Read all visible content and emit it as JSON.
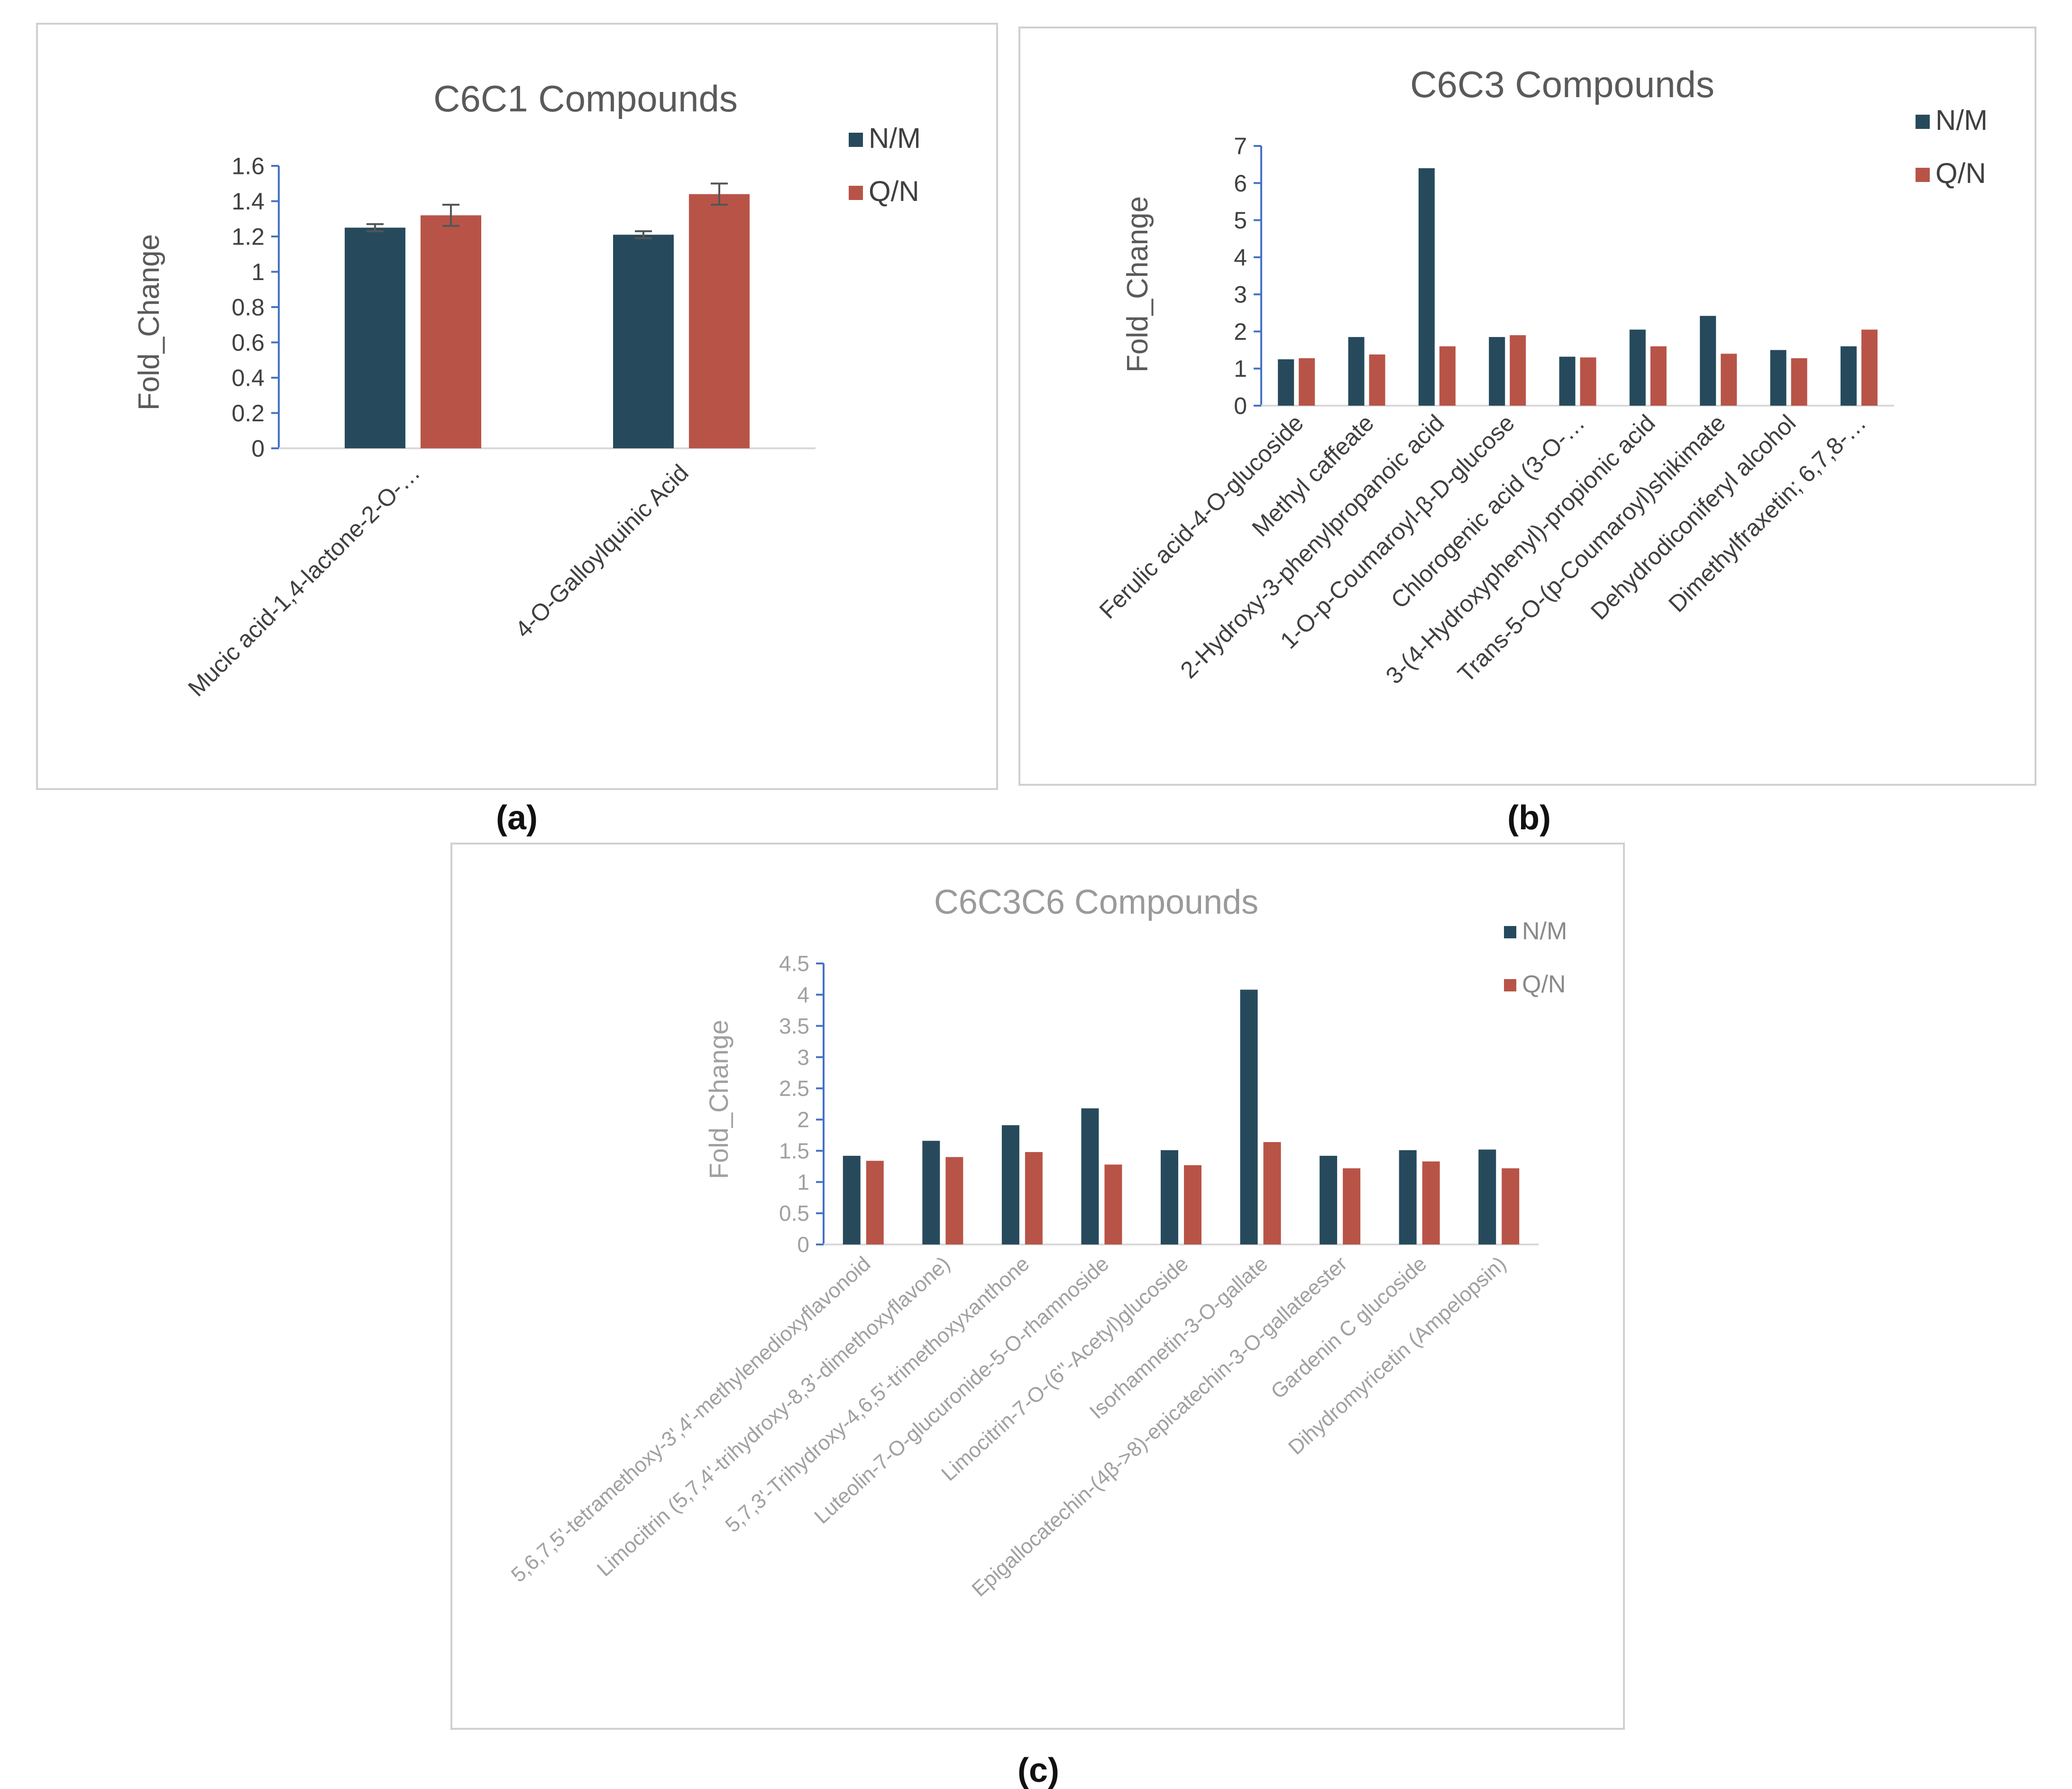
{
  "colors": {
    "nm": "#264a5c",
    "qn": "#b85447",
    "axis": "#4472c4",
    "frame": "#d0d0d0"
  },
  "chart_data": [
    {
      "type": "bar",
      "title": "C6C1 Compounds",
      "ylabel": "Fold_Change",
      "ylim": [
        0,
        1.6
      ],
      "yticks": [
        "0",
        "0.2",
        "0.4",
        "0.6",
        "0.8",
        "1",
        "1.2",
        "1.4",
        "1.6"
      ],
      "categories": [
        "Mucic acid-1,4-lactone-2-O-…",
        "4-O-Galloylquinic Acid"
      ],
      "series": [
        {
          "name": "N/M",
          "values": [
            1.25,
            1.21
          ],
          "error": [
            0.02,
            0.02
          ]
        },
        {
          "name": "Q/N",
          "values": [
            1.32,
            1.44
          ],
          "error": [
            0.06,
            0.06
          ]
        }
      ],
      "legend": "right",
      "caption": "(a)"
    },
    {
      "type": "bar",
      "title": "C6C3 Compounds",
      "ylabel": "Fold_Change",
      "ylim": [
        0,
        7
      ],
      "yticks": [
        "0",
        "1",
        "2",
        "3",
        "4",
        "5",
        "6",
        "7"
      ],
      "categories": [
        "Ferulic acid-4-O-glucoside",
        "Methyl caffeate",
        "2-Hydroxy-3-phenylpropanoic acid",
        "1-O-p-Coumaroyl-β-D-glucose",
        "Chlorogenic acid (3-O-…",
        "3-(4-Hydroxyphenyl)-propionic acid",
        "Trans-5-O-(p-Coumaroyl)shikimate",
        "Dehydrodiconiferyl alcohol",
        "Dimethylfraxetin; 6,7,8-…"
      ],
      "series": [
        {
          "name": "N/M",
          "values": [
            1.25,
            1.85,
            6.4,
            1.85,
            1.32,
            2.05,
            2.42,
            1.5,
            1.6
          ]
        },
        {
          "name": "Q/N",
          "values": [
            1.28,
            1.38,
            1.6,
            1.9,
            1.3,
            1.6,
            1.4,
            1.28,
            2.05
          ]
        }
      ],
      "legend": "top-right",
      "caption": "(b)"
    },
    {
      "type": "bar",
      "title": "C6C3C6 Compounds",
      "ylabel": "Fold_Change",
      "ylim": [
        0,
        4.5
      ],
      "yticks": [
        "0",
        "0.5",
        "1",
        "1.5",
        "2",
        "2.5",
        "3",
        "3.5",
        "4",
        "4.5"
      ],
      "categories": [
        "5,6,7,5'-tetramethoxy-3',4'-methylenedioxyflavonoid",
        "Limocitrin (5,7,4'-trihydroxy-8,3'-dimethoxyflavone)",
        "5,7,3'-Trihydroxy-4,6,5'-trimethoxyxanthone",
        "Luteolin-7-O-glucuronide-5-O-rhamnoside",
        "Limocitrin-7-O-(6''-Acetyl)glucoside",
        "Isorhamnetin-3-O-gallate",
        "Epigallocatechin-(4β->8)-epicatechin-3-O-gallateester",
        "Gardenin C glucoside",
        "Dihydromyricetin (Ampelopsin)"
      ],
      "series": [
        {
          "name": "N/M",
          "values": [
            1.42,
            1.66,
            1.91,
            2.18,
            1.51,
            4.08,
            1.42,
            1.51,
            1.52
          ]
        },
        {
          "name": "Q/N",
          "values": [
            1.34,
            1.4,
            1.48,
            1.28,
            1.27,
            1.64,
            1.22,
            1.33,
            1.22
          ]
        }
      ],
      "legend": "top-right",
      "caption": "(c)"
    }
  ]
}
